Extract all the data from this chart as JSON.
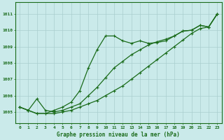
{
  "title": "Graphe pression niveau de la mer (hPa)",
  "bg_color": "#caeaea",
  "grid_color": "#b0d8d8",
  "line_color": "#1a6b1a",
  "xlim": [
    -0.5,
    23.5
  ],
  "ylim": [
    1004.3,
    1011.7
  ],
  "yticks": [
    1005,
    1006,
    1007,
    1008,
    1009,
    1010,
    1011
  ],
  "xticks": [
    0,
    1,
    2,
    3,
    4,
    5,
    6,
    7,
    8,
    9,
    10,
    11,
    12,
    13,
    14,
    15,
    16,
    17,
    18,
    19,
    20,
    21,
    22,
    23
  ],
  "series1": [
    1005.3,
    1005.1,
    1004.9,
    1004.9,
    1005.1,
    1005.3,
    1005.6,
    1006.3,
    1007.7,
    1008.8,
    1009.65,
    1009.65,
    1009.35,
    1009.2,
    1009.35,
    1009.2,
    1009.25,
    1009.35,
    1009.65,
    1009.95,
    1010.0,
    1010.3,
    1010.2,
    1011.0
  ],
  "series2": [
    1005.3,
    1005.1,
    1005.8,
    1005.1,
    1005.0,
    1005.1,
    1005.3,
    1005.5,
    1006.0,
    1006.5,
    1007.1,
    1007.7,
    1008.1,
    1008.5,
    1008.8,
    1009.1,
    1009.3,
    1009.45,
    1009.65,
    1009.95,
    1010.0,
    1010.3,
    1010.2,
    1011.0
  ],
  "series3": [
    1005.3,
    1005.1,
    1004.9,
    1004.9,
    1004.9,
    1005.0,
    1005.1,
    1005.3,
    1005.5,
    1005.7,
    1006.0,
    1006.3,
    1006.6,
    1007.0,
    1007.4,
    1007.8,
    1008.2,
    1008.6,
    1009.0,
    1009.4,
    1009.8,
    1010.1,
    1010.2,
    1011.0
  ]
}
